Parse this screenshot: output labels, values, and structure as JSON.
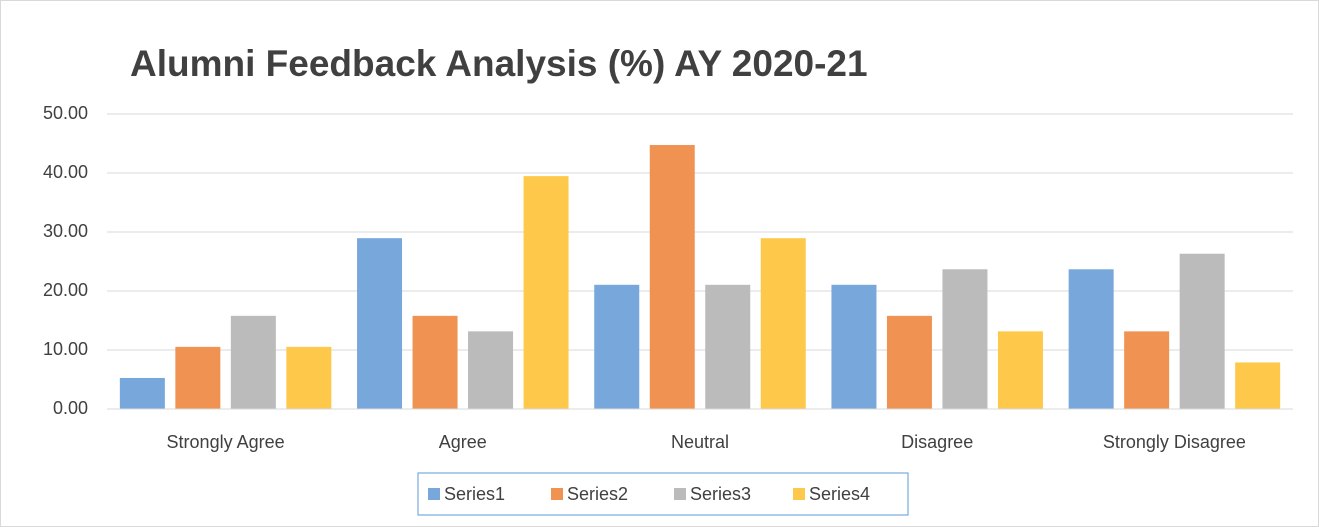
{
  "chart_data": {
    "type": "bar",
    "title": "Alumni Feedback Analysis (%) AY 2020-21",
    "categories": [
      "Strongly Agree",
      "Agree",
      "Neutral",
      "Disagree",
      "Strongly Disagree"
    ],
    "series": [
      {
        "name": "Series1",
        "color": "#77a7db",
        "values": [
          5.26,
          28.95,
          21.05,
          21.05,
          23.68
        ]
      },
      {
        "name": "Series2",
        "color": "#f09252",
        "values": [
          10.53,
          15.79,
          44.74,
          15.79,
          13.16
        ]
      },
      {
        "name": "Series3",
        "color": "#bbbbbb",
        "values": [
          15.79,
          13.16,
          21.05,
          23.68,
          26.32
        ]
      },
      {
        "name": "Series4",
        "color": "#fec84a",
        "values": [
          10.53,
          39.47,
          28.95,
          13.16,
          7.89
        ]
      }
    ],
    "ylim": [
      0,
      50
    ],
    "yticks": [
      {
        "value": 0,
        "label": "0.00"
      },
      {
        "value": 10,
        "label": "10.00"
      },
      {
        "value": 20,
        "label": "20.00"
      },
      {
        "value": 30,
        "label": "30.00"
      },
      {
        "value": 40,
        "label": "40.00"
      },
      {
        "value": 50,
        "label": "50.00"
      }
    ],
    "grid": true,
    "legend": "bottom"
  }
}
